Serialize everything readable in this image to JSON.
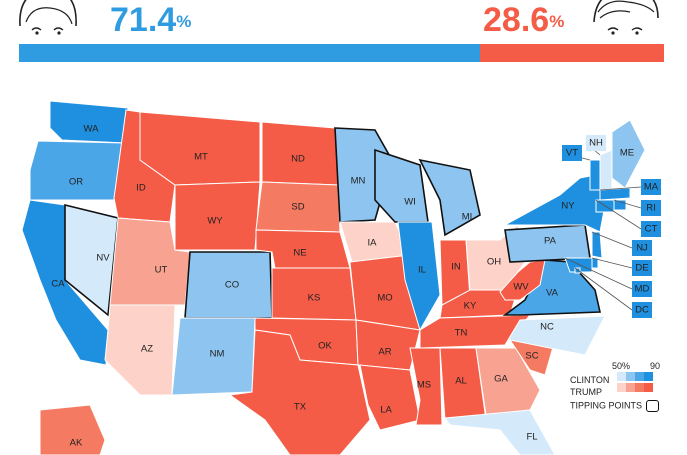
{
  "header": {
    "clinton_value": "71.4",
    "trump_value": "28.6",
    "percent_symbol": "%",
    "clinton_share": 71.4,
    "trump_share": 28.6,
    "clinton_color": "#2f9be0",
    "trump_color": "#f55c47"
  },
  "colors": {
    "d90": "#1f8fe0",
    "d75": "#4ba6e8",
    "d60": "#8ec5f0",
    "d50": "#d4e9fa",
    "r50": "#fcd2c9",
    "r60": "#f8a391",
    "r75": "#f57a62",
    "r90": "#f55c47"
  },
  "states": [
    {
      "abbr": "WA",
      "level": "d90"
    },
    {
      "abbr": "OR",
      "level": "d75"
    },
    {
      "abbr": "CA",
      "level": "d90"
    },
    {
      "abbr": "NV",
      "level": "d50",
      "tipping": true
    },
    {
      "abbr": "ID",
      "level": "r90"
    },
    {
      "abbr": "MT",
      "level": "r90"
    },
    {
      "abbr": "WY",
      "level": "r90"
    },
    {
      "abbr": "UT",
      "level": "r60"
    },
    {
      "abbr": "AZ",
      "level": "r50"
    },
    {
      "abbr": "CO",
      "level": "d60",
      "tipping": true
    },
    {
      "abbr": "NM",
      "level": "d60"
    },
    {
      "abbr": "ND",
      "level": "r90"
    },
    {
      "abbr": "SD",
      "level": "r75"
    },
    {
      "abbr": "NE",
      "level": "r90"
    },
    {
      "abbr": "KS",
      "level": "r90"
    },
    {
      "abbr": "OK",
      "level": "r90"
    },
    {
      "abbr": "TX",
      "level": "r90"
    },
    {
      "abbr": "MN",
      "level": "d60",
      "tipping": true
    },
    {
      "abbr": "IA",
      "level": "r50"
    },
    {
      "abbr": "MO",
      "level": "r90"
    },
    {
      "abbr": "AR",
      "level": "r90"
    },
    {
      "abbr": "LA",
      "level": "r90"
    },
    {
      "abbr": "WI",
      "level": "d60",
      "tipping": true
    },
    {
      "abbr": "IL",
      "level": "d90"
    },
    {
      "abbr": "MI",
      "level": "d60",
      "tipping": true
    },
    {
      "abbr": "IN",
      "level": "r90"
    },
    {
      "abbr": "OH",
      "level": "r50"
    },
    {
      "abbr": "KY",
      "level": "r90"
    },
    {
      "abbr": "TN",
      "level": "r90"
    },
    {
      "abbr": "MS",
      "level": "r90"
    },
    {
      "abbr": "AL",
      "level": "r90"
    },
    {
      "abbr": "GA",
      "level": "r60"
    },
    {
      "abbr": "FL",
      "level": "d50"
    },
    {
      "abbr": "SC",
      "level": "r75"
    },
    {
      "abbr": "NC",
      "level": "d50"
    },
    {
      "abbr": "VA",
      "level": "d75",
      "tipping": true
    },
    {
      "abbr": "WV",
      "level": "r90"
    },
    {
      "abbr": "PA",
      "level": "d60",
      "tipping": true
    },
    {
      "abbr": "NY",
      "level": "d90"
    },
    {
      "abbr": "ME",
      "level": "d60"
    },
    {
      "abbr": "AK",
      "level": "r75"
    },
    {
      "abbr": "VT",
      "level": "d90"
    },
    {
      "abbr": "NH",
      "level": "d50"
    },
    {
      "abbr": "MA",
      "level": "d90"
    },
    {
      "abbr": "RI",
      "level": "d90"
    },
    {
      "abbr": "CT",
      "level": "d90"
    },
    {
      "abbr": "NJ",
      "level": "d90"
    },
    {
      "abbr": "DE",
      "level": "d90"
    },
    {
      "abbr": "MD",
      "level": "d90"
    },
    {
      "abbr": "DC",
      "level": "d90"
    }
  ],
  "legend": {
    "scale_low": "50%",
    "scale_high": "90",
    "clinton_label": "CLINTON",
    "trump_label": "TRUMP",
    "tipping_label": "TIPPING POINTS"
  }
}
